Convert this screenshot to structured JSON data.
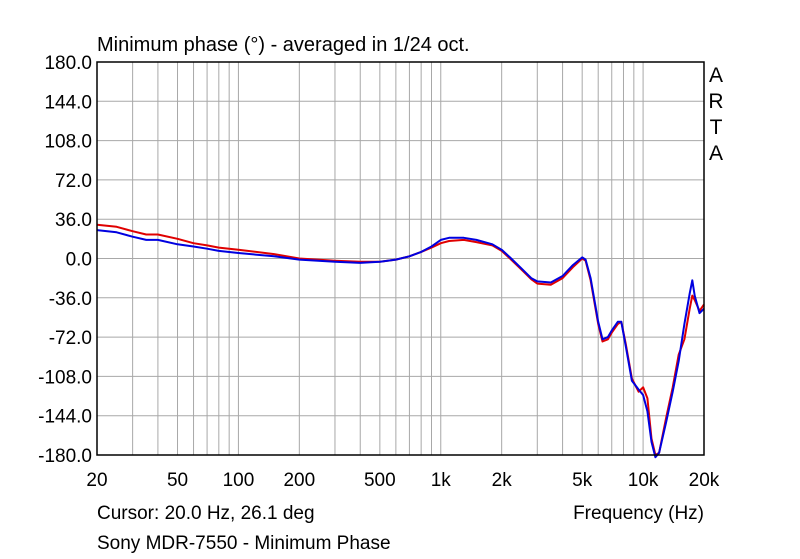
{
  "chart_data": {
    "type": "line",
    "title": "Minimum phase (°) - averaged in 1/24 oct.",
    "xlabel": "Frequency (Hz)",
    "ylabel": "",
    "xscale": "log",
    "xlim": [
      20,
      20000
    ],
    "ylim": [
      -180,
      180
    ],
    "grid": true,
    "yticks": [
      180,
      144,
      108,
      72,
      36,
      0,
      -36,
      -72,
      -108,
      -144,
      -180
    ],
    "ytick_labels": [
      "180.0",
      "144.0",
      "108.0",
      "72.0",
      "36.0",
      "0.0",
      "-36.0",
      "-72.0",
      "-108.0",
      "-144.0",
      "-180.0"
    ],
    "xticks": [
      20,
      50,
      100,
      200,
      500,
      1000,
      2000,
      5000,
      10000,
      20000
    ],
    "xtick_labels": [
      "20",
      "50",
      "100",
      "200",
      "500",
      "1k",
      "2k",
      "5k",
      "10k",
      "20k"
    ],
    "watermark": "ARTA",
    "series": [
      {
        "name": "red",
        "color": "#e00000",
        "x": [
          20,
          25,
          30,
          35,
          40,
          50,
          60,
          70,
          80,
          100,
          150,
          200,
          300,
          400,
          500,
          600,
          700,
          800,
          900,
          1000,
          1100,
          1300,
          1500,
          1800,
          2000,
          2200,
          2500,
          2800,
          3000,
          3500,
          4000,
          4500,
          5000,
          5200,
          5500,
          6000,
          6300,
          6700,
          7000,
          7500,
          7800,
          8200,
          8800,
          9500,
          10000,
          10500,
          11000,
          11500,
          12000,
          13000,
          14000,
          15000,
          16000,
          17000,
          17500,
          18000,
          19000,
          20000
        ],
        "values": [
          31,
          29,
          25,
          22,
          22,
          18,
          14,
          12,
          10,
          8,
          4,
          0,
          -2,
          -3,
          -3,
          -1,
          2,
          6,
          10,
          14,
          16,
          17,
          15,
          12,
          7,
          0,
          -10,
          -19,
          -23,
          -24,
          -18,
          -8,
          0,
          -2,
          -20,
          -60,
          -76,
          -74,
          -68,
          -60,
          -58,
          -78,
          -110,
          -122,
          -118,
          -128,
          -165,
          -180,
          -178,
          -146,
          -118,
          -88,
          -74,
          -46,
          -34,
          -38,
          -48,
          -42
        ]
      },
      {
        "name": "blue",
        "color": "#0000e0",
        "x": [
          20,
          25,
          30,
          35,
          40,
          50,
          60,
          70,
          80,
          100,
          150,
          200,
          300,
          400,
          500,
          600,
          700,
          800,
          900,
          1000,
          1100,
          1300,
          1500,
          1800,
          2000,
          2200,
          2500,
          2800,
          3000,
          3500,
          4000,
          4500,
          5000,
          5200,
          5500,
          6000,
          6300,
          6700,
          7000,
          7500,
          7800,
          8200,
          8800,
          9500,
          10000,
          10500,
          11000,
          11500,
          12000,
          13000,
          14000,
          15000,
          16000,
          17000,
          17500,
          18000,
          19000,
          20000
        ],
        "values": [
          26,
          24,
          20,
          17,
          17,
          13,
          11,
          9,
          7,
          5,
          2,
          -1,
          -3,
          -4,
          -3,
          -1,
          2,
          6,
          11,
          17,
          19,
          19,
          17,
          13,
          8,
          1,
          -9,
          -18,
          -21,
          -22,
          -16,
          -6,
          1,
          -1,
          -18,
          -58,
          -74,
          -72,
          -66,
          -58,
          -58,
          -80,
          -112,
          -120,
          -125,
          -140,
          -168,
          -182,
          -178,
          -150,
          -122,
          -94,
          -60,
          -32,
          -20,
          -34,
          -50,
          -46
        ]
      }
    ]
  },
  "footer": {
    "cursor": "Cursor: 20.0 Hz, 26.1 deg",
    "device": "Sony MDR-7550 - Minimum Phase"
  }
}
